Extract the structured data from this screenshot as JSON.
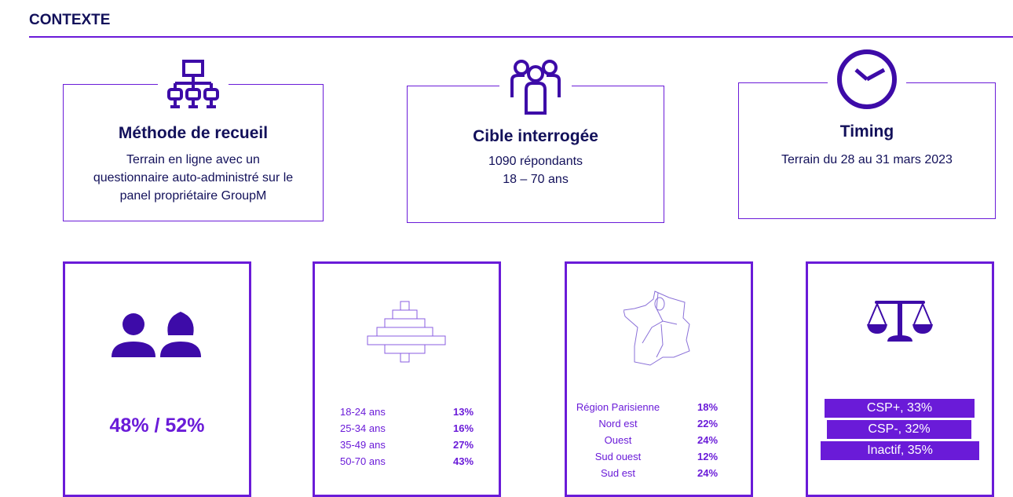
{
  "title": "CONTEXTE",
  "cards": [
    {
      "heading": "Méthode de recueil",
      "lines": [
        "Terrain en ligne avec un",
        "questionnaire auto-administré sur le",
        "panel propriétaire GroupM"
      ],
      "icon": "network-icon"
    },
    {
      "heading": "Cible interrogée",
      "lines": [
        "1090 répondants",
        "18 – 70 ans"
      ],
      "icon": "people-group-icon"
    },
    {
      "heading": "Timing",
      "lines": [
        "Terrain du 28 au 31 mars 2023"
      ],
      "icon": "clock-icon"
    }
  ],
  "gender": {
    "value": "48% / 52%",
    "icon": "man-woman-icon"
  },
  "ages": [
    {
      "label": "18-24 ans",
      "pct": "13%"
    },
    {
      "label": "25-34 ans",
      "pct": "16%"
    },
    {
      "label": "35-49 ans",
      "pct": "27%"
    },
    {
      "label": "50-70 ans",
      "pct": "43%"
    }
  ],
  "regions": [
    {
      "label": "Région Parisienne",
      "pct": "18%"
    },
    {
      "label": "Nord est",
      "pct": "22%"
    },
    {
      "label": "Ouest",
      "pct": "24%"
    },
    {
      "label": "Sud ouest",
      "pct": "12%"
    },
    {
      "label": "Sud est",
      "pct": "24%"
    }
  ],
  "csp": [
    {
      "label": "CSP+, 33%"
    },
    {
      "label": "CSP-, 32%"
    },
    {
      "label": "Inactif, 35%"
    }
  ],
  "colors": {
    "accent": "#6a1bd8",
    "navy": "#12105a",
    "icon": "#3d0ba8"
  }
}
